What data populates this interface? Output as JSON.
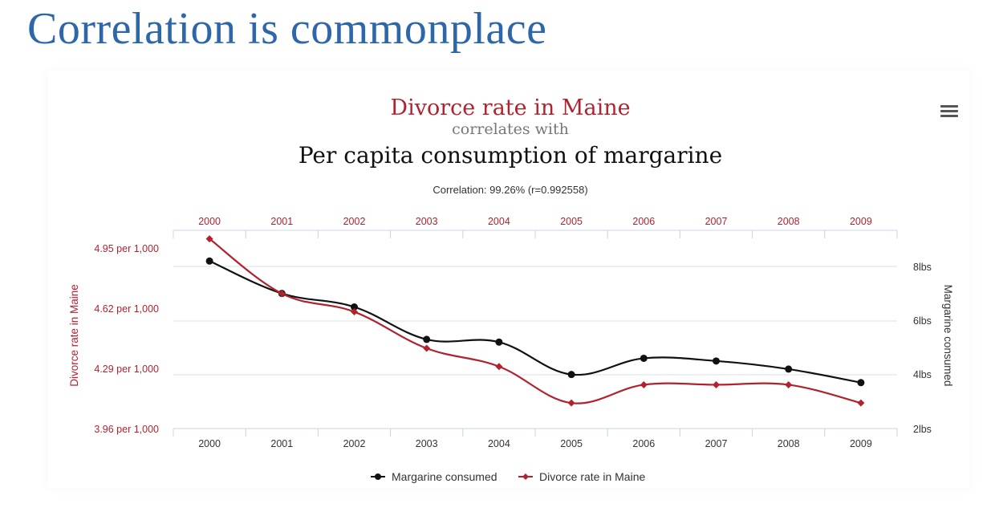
{
  "slide": {
    "title": "Correlation is commonplace"
  },
  "chart_data": {
    "type": "line",
    "title": "Divorce rate in Maine",
    "subtitle_connector": "correlates with",
    "title2": "Per capita consumption of margarine",
    "correlation_text": "Correlation: 99.26% (r=0.992558)",
    "x": [
      "2000",
      "2001",
      "2002",
      "2003",
      "2004",
      "2005",
      "2006",
      "2007",
      "2008",
      "2009"
    ],
    "y_left": {
      "label": "Divorce rate in Maine",
      "ticks": [
        "4.95 per 1,000",
        "4.62 per 1,000",
        "4.29 per 1,000",
        "3.96 per 1,000"
      ],
      "range": [
        3.96,
        4.95
      ],
      "color": "#b0232e"
    },
    "y_right": {
      "label": "Margarine consumed",
      "ticks": [
        "8lbs",
        "6lbs",
        "4lbs",
        "2lbs"
      ],
      "range": [
        2,
        9
      ],
      "color": "#333333"
    },
    "series": [
      {
        "name": "Margarine consumed",
        "axis": "right",
        "color": "#111111",
        "values": [
          8.2,
          7.0,
          6.5,
          5.3,
          5.2,
          4.0,
          4.6,
          4.5,
          4.2,
          3.7
        ]
      },
      {
        "name": "Divorce rate in Maine",
        "axis": "left",
        "color": "#b0232e",
        "values": [
          5.0,
          4.7,
          4.6,
          4.4,
          4.3,
          4.1,
          4.2,
          4.2,
          4.2,
          4.1
        ]
      }
    ],
    "grid": true,
    "legend_position": "bottom-center"
  }
}
